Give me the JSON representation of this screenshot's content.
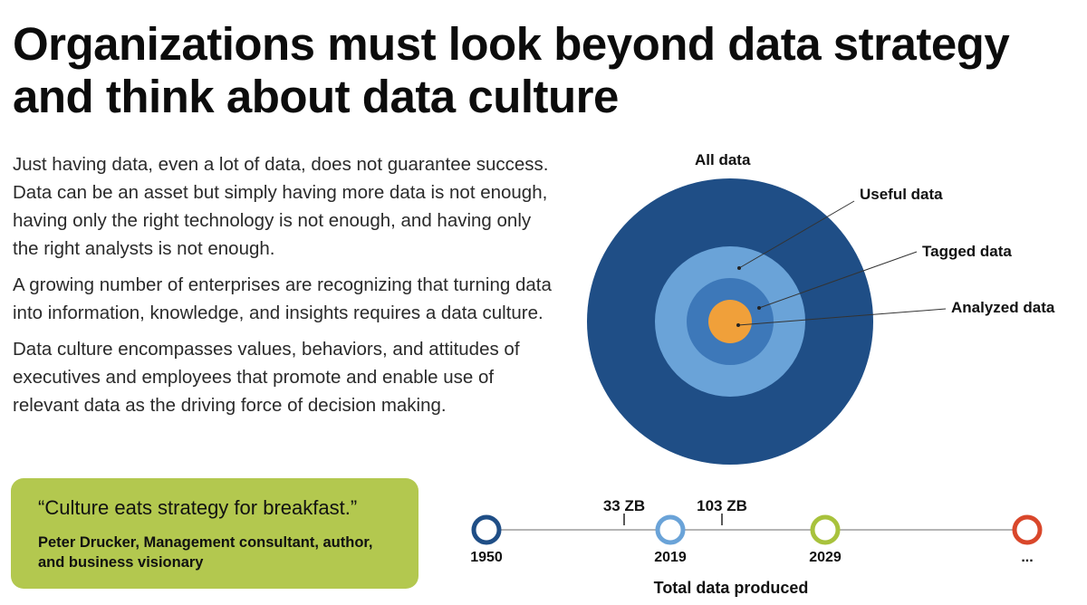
{
  "title": {
    "line1": "Organizations must look beyond data strategy",
    "line2": "and think about data culture"
  },
  "paragraphs": [
    "Just having data, even a lot of data, does not guarantee success. Data can be an asset but simply having more data is not enough, having only the right technology is not enough, and having only the right analysts is not enough.",
    "A growing number of enterprises are recognizing that turning data into information, knowledge, and insights requires a data culture.",
    "Data culture encompasses values, behaviors, and attitudes of executives and employees that promote and enable use of relevant data as the driving force of decision making."
  ],
  "quote": {
    "text": "“Culture eats strategy for breakfast.”",
    "attribution": "Peter Drucker, Management consultant, author, and business visionary",
    "box_color": "#b3c84f"
  },
  "circles": [
    {
      "label": "All data",
      "color": "#1f4e86"
    },
    {
      "label": "Useful data",
      "color": "#6aa3d8"
    },
    {
      "label": "Tagged data",
      "color": "#3d78b9"
    },
    {
      "label": "Analyzed data",
      "color": "#f0a03a"
    }
  ],
  "timeline": {
    "label": "Total data produced",
    "points": [
      {
        "label": "1950",
        "color": "#1f4e86"
      },
      {
        "label": "2019",
        "color": "#6aa3d8"
      },
      {
        "label": "2029",
        "color": "#a8c23c"
      },
      {
        "label": "...",
        "color": "#d9472b"
      }
    ],
    "markers": [
      {
        "label": "33 ZB"
      },
      {
        "label": "103 ZB"
      }
    ]
  }
}
